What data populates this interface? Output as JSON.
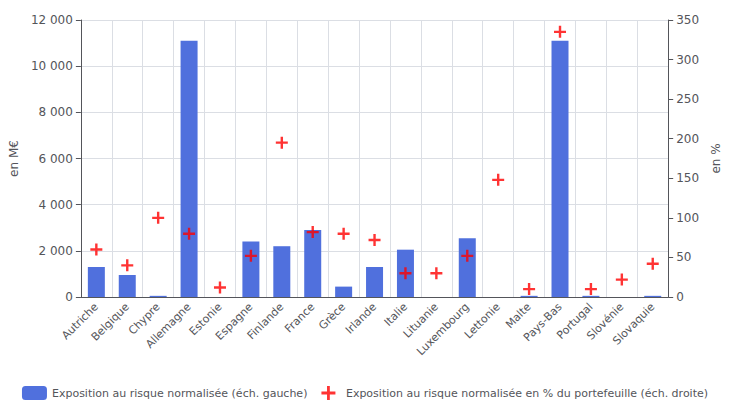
{
  "chart_data": {
    "type": "bar",
    "categories": [
      "Autriche",
      "Belgique",
      "Chypre",
      "Allemagne",
      "Estonie",
      "Espagne",
      "Finlande",
      "France",
      "Grèce",
      "Irlande",
      "Italie",
      "Lituanie",
      "Luxembourg",
      "Lettonie",
      "Malte",
      "Pays-Bas",
      "Portugal",
      "Slovénie",
      "Slovaquie"
    ],
    "series": [
      {
        "name": "Exposition au risque normalisée (éch. gauche)",
        "type": "bar",
        "values": [
          1300,
          950,
          50,
          11100,
          0,
          2400,
          2200,
          2900,
          450,
          1300,
          2050,
          0,
          2550,
          0,
          50,
          11100,
          50,
          0,
          50
        ]
      },
      {
        "name": "Exposition au risque normalisée en % du portefeuille (éch. droite)",
        "type": "scatter",
        "axis": "y2",
        "color": "#ff0000",
        "marker": "+",
        "values": [
          60,
          40,
          100,
          80,
          12,
          52,
          195,
          82,
          80,
          72,
          30,
          30,
          52,
          148,
          10,
          335,
          10,
          22,
          42
        ]
      }
    ],
    "ylabel": "en M€",
    "y2label": "en %",
    "ylim": [
      0,
      12000
    ],
    "yticks": [
      0,
      {
        "value": 2000,
        "label": "2 000"
      },
      {
        "value": 4000,
        "label": "4 000"
      },
      {
        "value": 6000,
        "label": "6 000"
      },
      {
        "value": 8000,
        "label": "8 000"
      },
      {
        "value": 10000,
        "label": "10 000"
      },
      {
        "value": 12000,
        "label": "12 000"
      }
    ],
    "y2lim": [
      0,
      350
    ],
    "y2ticks": [
      0,
      50,
      100,
      150,
      200,
      250,
      300,
      350
    ],
    "grid": true,
    "legend": "bottom"
  }
}
